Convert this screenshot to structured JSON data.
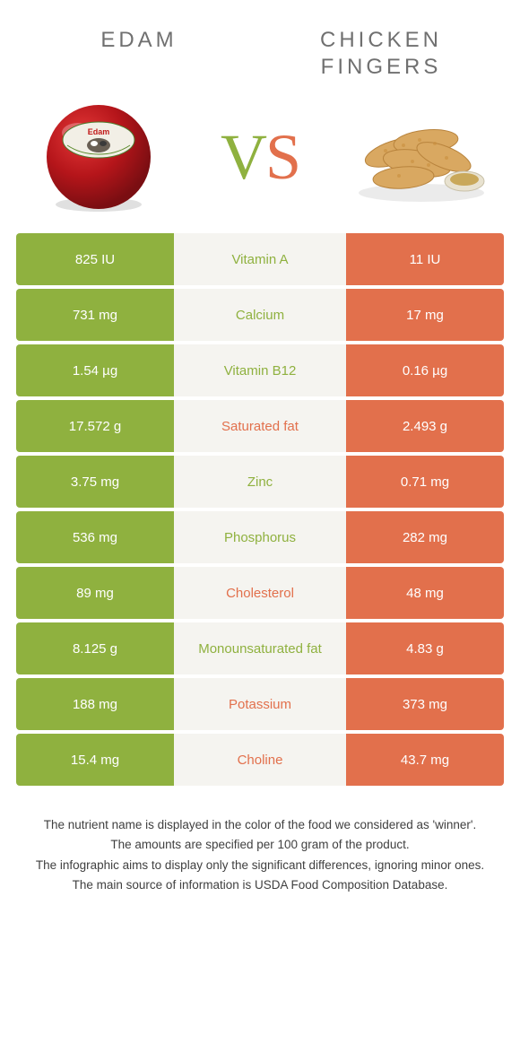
{
  "colors": {
    "left": "#8fb13f",
    "right": "#e2704c",
    "mid_bg": "#f5f4f0",
    "title": "#707070",
    "footer": "#404040",
    "edam_red": "#b5151a",
    "edam_dark": "#7a0e12",
    "edam_label": "#f2efe6",
    "chicken": "#d9a861",
    "chicken_dark": "#b8833c",
    "sauce_cup": "#e8e2d0",
    "sauce": "#c9a85a"
  },
  "header": {
    "left_title": "EDAM",
    "right_title": "CHICKEN FINGERS"
  },
  "vs": {
    "v": "V",
    "s": "S"
  },
  "rows": [
    {
      "left": "825 IU",
      "label": "Vitamin A",
      "right": "11 IU",
      "winner": "left"
    },
    {
      "left": "731 mg",
      "label": "Calcium",
      "right": "17 mg",
      "winner": "left"
    },
    {
      "left": "1.54 µg",
      "label": "Vitamin B12",
      "right": "0.16 µg",
      "winner": "left"
    },
    {
      "left": "17.572 g",
      "label": "Saturated fat",
      "right": "2.493 g",
      "winner": "right"
    },
    {
      "left": "3.75 mg",
      "label": "Zinc",
      "right": "0.71 mg",
      "winner": "left"
    },
    {
      "left": "536 mg",
      "label": "Phosphorus",
      "right": "282 mg",
      "winner": "left"
    },
    {
      "left": "89 mg",
      "label": "Cholesterol",
      "right": "48 mg",
      "winner": "right"
    },
    {
      "left": "8.125 g",
      "label": "Monounsaturated fat",
      "right": "4.83 g",
      "winner": "left"
    },
    {
      "left": "188 mg",
      "label": "Potassium",
      "right": "373 mg",
      "winner": "right"
    },
    {
      "left": "15.4 mg",
      "label": "Choline",
      "right": "43.7 mg",
      "winner": "right"
    }
  ],
  "footer": {
    "line1": "The nutrient name is displayed in the color of the food we considered as 'winner'.",
    "line2": "The amounts are specified per 100 gram of the product.",
    "line3": "The infographic aims to display only the significant differences, ignoring minor ones.",
    "line4": "The main source of information is USDA Food Composition Database."
  }
}
